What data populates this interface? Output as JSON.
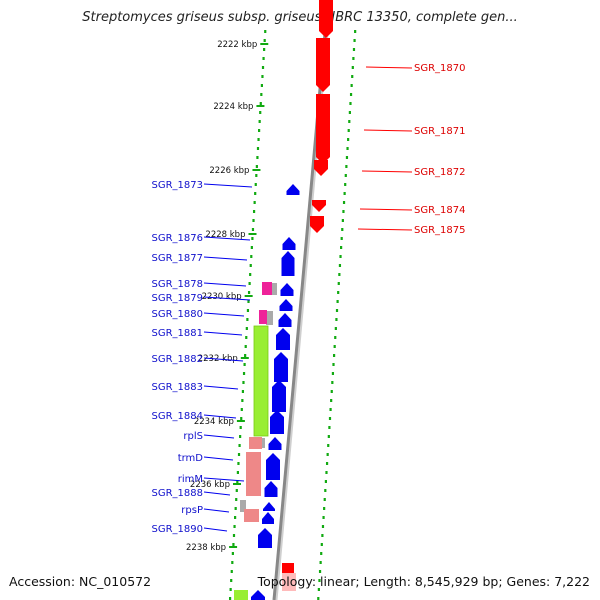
{
  "title": "Streptomyces griseus subsp. griseus NBRC 13350, complete gen...",
  "footer": {
    "accession": "Accession: NC_010572",
    "summary": "Topology: linear; Length: 8,545,929 bp; Genes: 7,222"
  },
  "colors": {
    "forward": "#ff0000",
    "reverse": "#0000ee",
    "rrna_green": "#99ee33",
    "pink": "#ee8888",
    "magenta": "#ee2299",
    "grey": "#aaaaaa",
    "backbone": "#888888",
    "dots": "#11aa11"
  },
  "ticks": [
    {
      "label": "2222 kbp"
    },
    {
      "label": "2224 kbp"
    },
    {
      "label": "2226 kbp"
    },
    {
      "label": "2228 kbp"
    },
    {
      "label": "2230 kbp"
    },
    {
      "label": "2232 kbp"
    },
    {
      "label": "2234 kbp"
    },
    {
      "label": "2236 kbp"
    },
    {
      "label": "2238 kbp"
    }
  ],
  "labels_right": [
    {
      "name": "SGR_1870"
    },
    {
      "name": "SGR_1871"
    },
    {
      "name": "SGR_1872"
    },
    {
      "name": "SGR_1874"
    },
    {
      "name": "SGR_1875"
    }
  ],
  "labels_left": [
    {
      "name": "SGR_1873"
    },
    {
      "name": "SGR_1876"
    },
    {
      "name": "SGR_1877"
    },
    {
      "name": "SGR_1878"
    },
    {
      "name": "SGR_1879"
    },
    {
      "name": "SGR_1880"
    },
    {
      "name": "SGR_1881"
    },
    {
      "name": "SGR_1882"
    },
    {
      "name": "SGR_1883"
    },
    {
      "name": "SGR_1884"
    },
    {
      "name": "rplS"
    },
    {
      "name": "trmD"
    },
    {
      "name": "rimM"
    },
    {
      "name": "SGR_1888"
    },
    {
      "name": "rpsP"
    },
    {
      "name": "SGR_1890"
    }
  ]
}
